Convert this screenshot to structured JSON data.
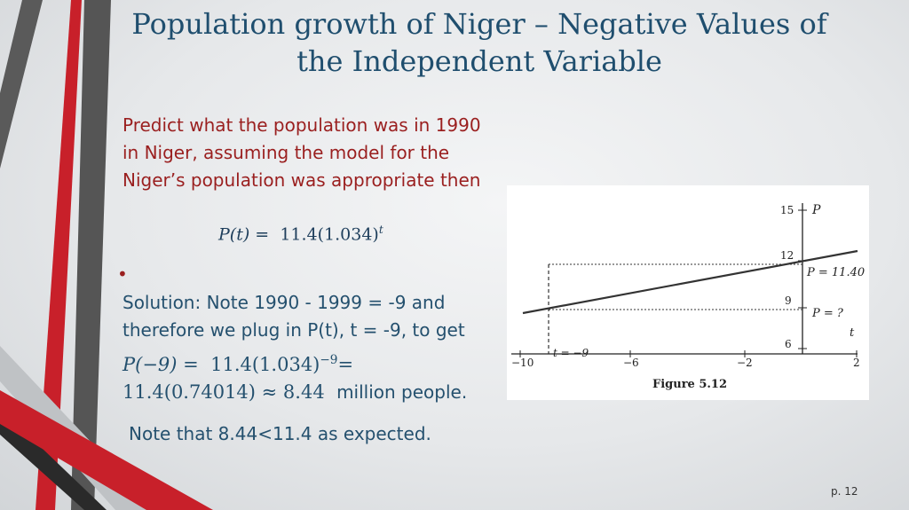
{
  "slide": {
    "title": "Population growth of Niger – Negative Values of the Independent Variable",
    "prompt": "Predict what the population was in 1990 in Niger, assuming the model for the Niger’s population was appropriate then",
    "model_lhs": "P(t) =",
    "model_rhs": "11.4(1.034)",
    "model_exp": "t",
    "bullet": "•",
    "solution": "Solution: Note 1990 - 1999 = -9 and therefore we plug in P(t), t = -9, to get",
    "calc_lhs": "P(−9) =",
    "calc_mid": "11.4(1.034)",
    "calc_exp": "−9",
    "calc_eq": "=",
    "calc_line2": "11.4(0.74014) ≈ 8.44",
    "calc_tail": "million people.",
    "note": "Note that 8.44<11.4 as expected.",
    "page_number": "p. 12"
  },
  "figure": {
    "caption": "Figure 5.12",
    "chart_data": {
      "type": "line",
      "x": [
        -10.5,
        2
      ],
      "y": [
        8.7,
        12.2
      ],
      "xlabel": "t",
      "ylabel": "P",
      "xticks": [
        "−10",
        "−6",
        "−2",
        "2"
      ],
      "yticks": [
        "6",
        "9",
        "12",
        "15"
      ],
      "annotations": [
        "t = −9",
        "P = 11.40",
        "P = ?"
      ]
    }
  },
  "colors": {
    "title": "#1f4e6e",
    "prompt": "#9a1f1f",
    "solution": "#24506e",
    "accent_red": "#c8202a",
    "accent_gray": "#5a5a5a"
  }
}
